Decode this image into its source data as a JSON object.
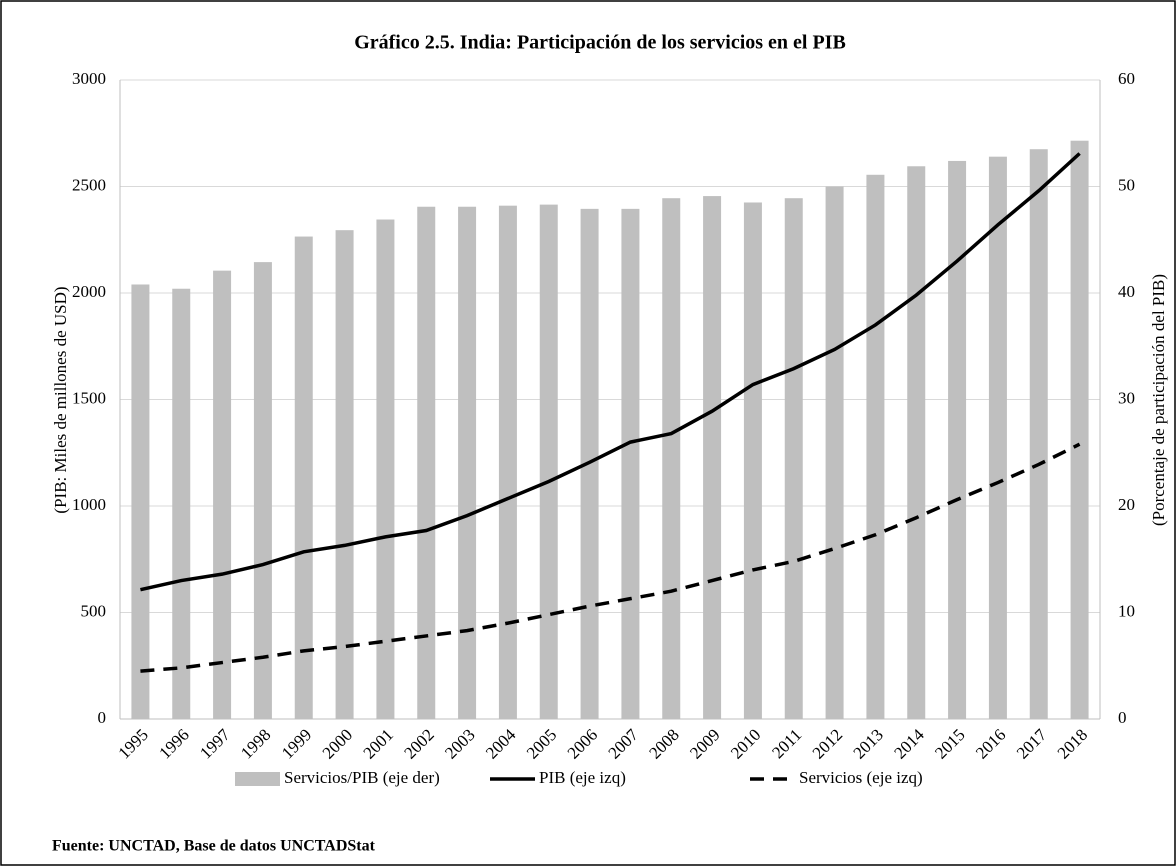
{
  "chart_data": {
    "type": "bar_line",
    "title": "Gráfico 2.5. India: Participación de los servicios en el PIB",
    "ylabel": "(PIB: Miles de millones de USD)",
    "y2label": "(Porcentaje de participación del PIB)",
    "source": "Fuente: UNCTAD, Base de datos UNCTADStat",
    "categories": [
      "1995",
      "1996",
      "1997",
      "1998",
      "1999",
      "2000",
      "2001",
      "2002",
      "2003",
      "2004",
      "2005",
      "2006",
      "2007",
      "2008",
      "2009",
      "2010",
      "2011",
      "2012",
      "2013",
      "2014",
      "2015",
      "2016",
      "2017",
      "2018"
    ],
    "series": [
      {
        "name": "Servicios/PIB (eje der)",
        "type": "bar",
        "axis": "y2",
        "color": "#bfbfbf",
        "values": [
          40.8,
          40.4,
          42.1,
          42.9,
          45.3,
          45.9,
          46.9,
          48.1,
          48.1,
          48.2,
          48.3,
          47.9,
          47.9,
          48.9,
          49.1,
          48.5,
          48.9,
          50.0,
          51.1,
          51.9,
          52.4,
          52.8,
          53.5,
          54.3
        ]
      },
      {
        "name": "PIB (eje izq)",
        "type": "line",
        "axis": "y",
        "color": "#000000",
        "line_style": "solid",
        "values": [
          607,
          650,
          680,
          725,
          785,
          815,
          855,
          885,
          955,
          1035,
          1115,
          1205,
          1300,
          1340,
          1445,
          1570,
          1645,
          1735,
          1850,
          1990,
          2150,
          2320,
          2480,
          2655
        ]
      },
      {
        "name": "Servicios (eje izq)",
        "type": "line",
        "axis": "y",
        "color": "#000000",
        "line_style": "dashed",
        "values": [
          225,
          240,
          265,
          290,
          320,
          340,
          365,
          390,
          415,
          450,
          490,
          530,
          565,
          600,
          650,
          700,
          740,
          800,
          865,
          945,
          1030,
          1110,
          1195,
          1290
        ]
      }
    ],
    "ylim": [
      0,
      3000
    ],
    "yticks": [
      0,
      500,
      1000,
      1500,
      2000,
      2500,
      3000
    ],
    "y2lim": [
      0,
      60
    ],
    "y2ticks": [
      0,
      10,
      20,
      30,
      40,
      50,
      60
    ],
    "grid": true,
    "legend": "bottom"
  }
}
